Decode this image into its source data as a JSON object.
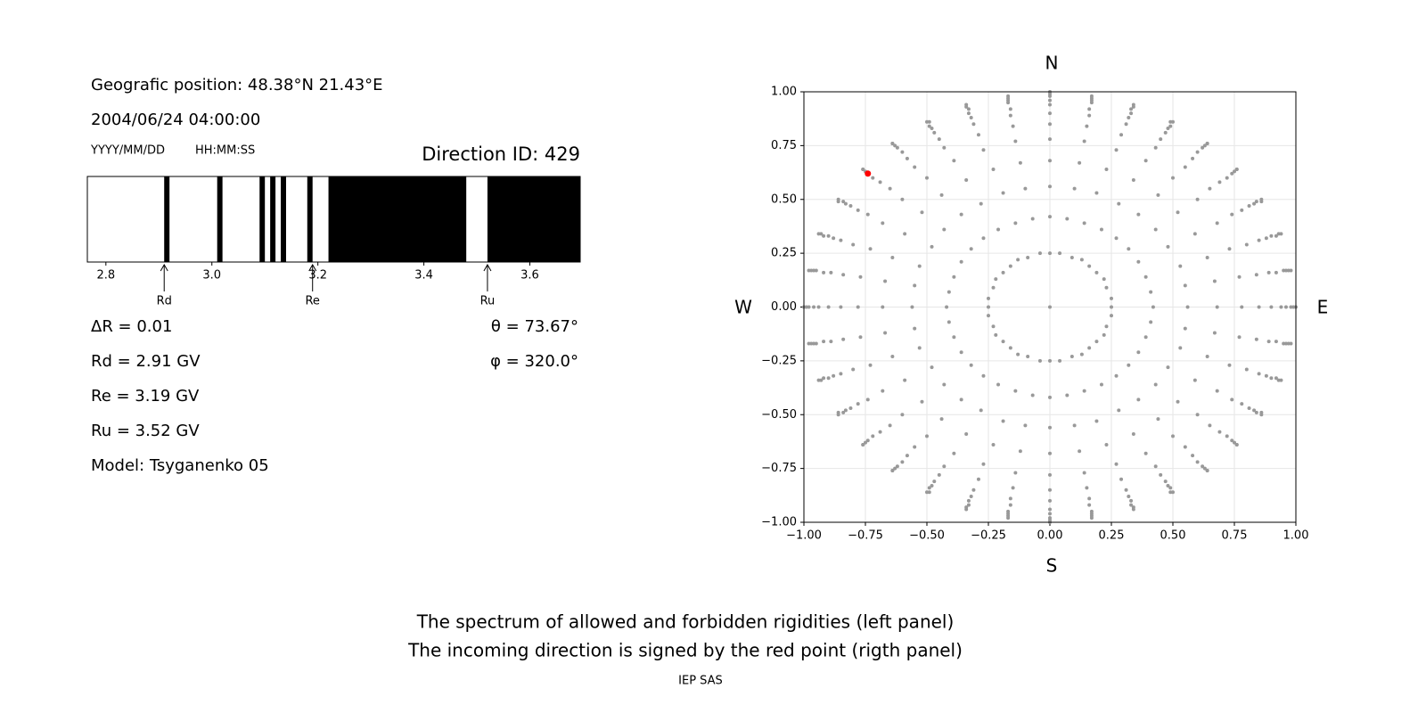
{
  "info": {
    "position": "Geografic position: 48.38°N 21.43°E",
    "datetime": "2004/06/24 04:00:00",
    "date_format": "YYYY/MM/DD",
    "time_format": "HH:MM:SS",
    "direction_id": "Direction ID: 429",
    "delta_r": "ΔR = 0.01",
    "rd": "Rd = 2.91 GV",
    "re": "Re = 3.19 GV",
    "ru": "Ru = 3.52 GV",
    "model": "Model: Tsyganenko 05",
    "theta": "θ = 73.67°",
    "phi": "φ = 320.0°"
  },
  "chart_data": [
    {
      "type": "spectrum",
      "xlim": [
        2.765,
        3.695
      ],
      "xticks": [
        2.8,
        {
          "value": 3,
          "label": "3.0"
        },
        3.2,
        3.4,
        3.6
      ],
      "band_color": "#000000",
      "bands": [
        [
          2.91,
          2.92
        ],
        [
          3.01,
          3.02
        ],
        [
          3.09,
          3.1
        ],
        [
          3.11,
          3.12
        ],
        [
          3.13,
          3.14
        ],
        [
          3.18,
          3.19
        ],
        [
          3.22,
          3.48
        ],
        [
          3.52,
          3.695
        ]
      ],
      "markers": [
        {
          "label": "Rd",
          "value": 2.91
        },
        {
          "label": "Re",
          "value": 3.19
        },
        {
          "label": "Ru",
          "value": 3.52
        }
      ]
    },
    {
      "type": "scatter",
      "xlim": [
        -1,
        1
      ],
      "ylim": [
        -1,
        1
      ],
      "grid": true,
      "xticks": [
        {
          "value": -1,
          "label": "−1.00"
        },
        {
          "value": -0.75,
          "label": "−0.75"
        },
        {
          "value": -0.5,
          "label": "−0.50"
        },
        {
          "value": -0.25,
          "label": "−0.25"
        },
        {
          "value": 0,
          "label": "0.00"
        },
        0.25,
        {
          "value": 0.5,
          "label": "0.50"
        },
        0.75,
        {
          "value": 1,
          "label": "1.00"
        }
      ],
      "yticks": [
        {
          "value": -1,
          "label": "−1.00"
        },
        {
          "value": -0.75,
          "label": "−0.75"
        },
        {
          "value": -0.5,
          "label": "−0.50"
        },
        {
          "value": -0.25,
          "label": "−0.25"
        },
        {
          "value": 0,
          "label": "0.00"
        },
        0.25,
        {
          "value": 0.5,
          "label": "0.50"
        },
        0.75,
        {
          "value": 1,
          "label": "1.00"
        }
      ],
      "compass": {
        "north": "N",
        "south": "S",
        "west": "W",
        "east": "E"
      },
      "series": [
        {
          "color": "#999999",
          "x": [
            0,
            0.25,
            0.25,
            0.23,
            0.22,
            0.19,
            0.16,
            0.13,
            0.09,
            0.04,
            0,
            -0.04,
            -0.09,
            -0.13,
            -0.16,
            -0.19,
            -0.22,
            -0.23,
            -0.25,
            -0.25,
            -0.25,
            -0.23,
            -0.22,
            -0.19,
            -0.16,
            -0.13,
            -0.09,
            -0.04,
            0,
            0.04,
            0.09,
            0.13,
            0.16,
            0.19,
            0.22,
            0.23,
            0.25,
            0.42,
            0.41,
            0.39,
            0.36,
            0.32,
            0.27,
            0.21,
            0.14,
            0.07,
            0,
            -0.07,
            -0.14,
            -0.21,
            -0.27,
            -0.32,
            -0.36,
            -0.39,
            -0.41,
            -0.42,
            -0.41,
            -0.39,
            -0.36,
            -0.32,
            -0.27,
            -0.21,
            -0.14,
            -0.07,
            0,
            0.07,
            0.14,
            0.21,
            0.27,
            0.32,
            0.36,
            0.39,
            0.41,
            0.56,
            0.55,
            0.53,
            0.48,
            0.43,
            0.36,
            0.28,
            0.19,
            0.1,
            0,
            -0.1,
            -0.19,
            -0.28,
            -0.36,
            -0.43,
            -0.48,
            -0.53,
            -0.55,
            -0.56,
            -0.55,
            -0.53,
            -0.48,
            -0.43,
            -0.36,
            -0.28,
            -0.19,
            -0.1,
            0,
            0.1,
            0.19,
            0.28,
            0.36,
            0.43,
            0.48,
            0.53,
            0.55,
            0.68,
            0.67,
            0.64,
            0.59,
            0.52,
            0.44,
            0.34,
            0.23,
            0.12,
            0,
            -0.12,
            -0.23,
            -0.34,
            -0.44,
            -0.52,
            -0.59,
            -0.64,
            -0.67,
            -0.68,
            -0.67,
            -0.64,
            -0.59,
            -0.52,
            -0.44,
            -0.34,
            -0.23,
            -0.12,
            0,
            0.12,
            0.23,
            0.34,
            0.44,
            0.52,
            0.59,
            0.64,
            0.67,
            0.78,
            0.77,
            0.73,
            0.68,
            0.6,
            0.5,
            0.39,
            0.27,
            0.14,
            0,
            -0.14,
            -0.27,
            -0.39,
            -0.5,
            -0.6,
            -0.68,
            -0.73,
            -0.77,
            -0.78,
            -0.77,
            -0.73,
            -0.68,
            -0.6,
            -0.5,
            -0.39,
            -0.27,
            -0.14,
            0,
            0.14,
            0.27,
            0.39,
            0.5,
            0.6,
            0.68,
            0.73,
            0.77,
            0.85,
            0.84,
            0.8,
            0.74,
            0.65,
            0.55,
            0.43,
            0.29,
            0.15,
            0,
            -0.15,
            -0.29,
            -0.43,
            -0.55,
            -0.65,
            -0.74,
            -0.8,
            -0.84,
            -0.85,
            -0.84,
            -0.8,
            -0.74,
            -0.65,
            -0.55,
            -0.43,
            -0.29,
            -0.15,
            0,
            0.15,
            0.29,
            0.43,
            0.55,
            0.65,
            0.74,
            0.8,
            0.84,
            0.9,
            0.89,
            0.85,
            0.78,
            0.69,
            0.58,
            0.45,
            0.31,
            0.16,
            0,
            -0.16,
            -0.31,
            -0.45,
            -0.58,
            -0.69,
            -0.78,
            -0.85,
            -0.89,
            -0.9,
            -0.89,
            -0.85,
            -0.78,
            -0.69,
            -0.58,
            -0.45,
            -0.31,
            -0.16,
            0,
            0.16,
            0.31,
            0.45,
            0.58,
            0.69,
            0.78,
            0.85,
            0.89,
            0.94,
            0.92,
            0.88,
            0.81,
            0.72,
            0.6,
            0.47,
            0.32,
            0.16,
            0,
            -0.16,
            -0.32,
            -0.47,
            -0.6,
            -0.72,
            -0.81,
            -0.88,
            -0.92,
            -0.94,
            -0.92,
            -0.88,
            -0.81,
            -0.72,
            -0.6,
            -0.47,
            -0.32,
            -0.16,
            0,
            0.16,
            0.32,
            0.47,
            0.6,
            0.72,
            0.81,
            0.88,
            0.92,
            0.96,
            0.95,
            0.9,
            0.83,
            0.74,
            0.62,
            0.48,
            0.33,
            0.17,
            0,
            -0.17,
            -0.33,
            -0.48,
            -0.62,
            -0.74,
            -0.83,
            -0.9,
            -0.95,
            -0.96,
            -0.95,
            -0.9,
            -0.83,
            -0.74,
            -0.62,
            -0.48,
            -0.33,
            -0.17,
            0,
            0.17,
            0.33,
            0.48,
            0.62,
            0.74,
            0.83,
            0.9,
            0.95,
            0.98,
            0.96,
            0.92,
            0.84,
            0.75,
            0.63,
            0.49,
            0.33,
            0.17,
            0,
            -0.17,
            -0.33,
            -0.49,
            -0.63,
            -0.75,
            -0.84,
            -0.92,
            -0.96,
            -0.98,
            -0.96,
            -0.92,
            -0.84,
            -0.75,
            -0.63,
            -0.49,
            -0.33,
            -0.17,
            0,
            0.17,
            0.33,
            0.49,
            0.63,
            0.75,
            0.84,
            0.92,
            0.96,
            0.99,
            0.97,
            0.93,
            0.86,
            0.76,
            0.64,
            0.49,
            0.34,
            0.17,
            0,
            -0.17,
            -0.34,
            -0.49,
            -0.64,
            -0.76,
            -0.86,
            -0.93,
            -0.97,
            -0.99,
            -0.97,
            -0.93,
            -0.86,
            -0.76,
            -0.64,
            -0.49,
            -0.34,
            -0.17,
            0,
            0.17,
            0.34,
            0.49,
            0.64,
            0.76,
            0.86,
            0.93,
            0.97,
            1,
            0.98,
            0.94,
            0.86,
            0.76,
            0.64,
            0.5,
            0.34,
            0.17,
            0,
            -0.17,
            -0.34,
            -0.5,
            -0.64,
            -0.76,
            -0.86,
            -0.94,
            -0.98,
            -1,
            -0.98,
            -0.94,
            -0.86,
            -0.76,
            -0.64,
            -0.5,
            -0.34,
            -0.17,
            0,
            0.17,
            0.34,
            0.5,
            0.64,
            0.76,
            0.86,
            0.94,
            0.98
          ],
          "values": [
            0,
            0,
            0.04,
            0.09,
            0.13,
            0.16,
            0.19,
            0.22,
            0.23,
            0.25,
            0.25,
            0.25,
            0.23,
            0.22,
            0.19,
            0.16,
            0.13,
            0.09,
            0.04,
            0,
            -0.04,
            -0.09,
            -0.13,
            -0.16,
            -0.19,
            -0.22,
            -0.23,
            -0.25,
            -0.25,
            -0.25,
            -0.23,
            -0.22,
            -0.19,
            -0.16,
            -0.13,
            -0.09,
            -0.04,
            0,
            0.07,
            0.14,
            0.21,
            0.27,
            0.32,
            0.36,
            0.39,
            0.41,
            0.42,
            0.41,
            0.39,
            0.36,
            0.32,
            0.27,
            0.21,
            0.14,
            0.07,
            0,
            -0.07,
            -0.14,
            -0.21,
            -0.27,
            -0.32,
            -0.36,
            -0.39,
            -0.41,
            -0.42,
            -0.41,
            -0.39,
            -0.36,
            -0.32,
            -0.27,
            -0.21,
            -0.14,
            -0.07,
            0,
            0.1,
            0.19,
            0.28,
            0.36,
            0.43,
            0.48,
            0.53,
            0.55,
            0.56,
            0.55,
            0.53,
            0.48,
            0.43,
            0.36,
            0.28,
            0.19,
            0.1,
            0,
            -0.1,
            -0.19,
            -0.28,
            -0.36,
            -0.43,
            -0.48,
            -0.53,
            -0.55,
            -0.56,
            -0.55,
            -0.53,
            -0.48,
            -0.43,
            -0.36,
            -0.28,
            -0.19,
            -0.1,
            0,
            0.12,
            0.23,
            0.34,
            0.44,
            0.52,
            0.59,
            0.64,
            0.67,
            0.68,
            0.67,
            0.64,
            0.59,
            0.52,
            0.44,
            0.34,
            0.23,
            0.12,
            0,
            -0.12,
            -0.23,
            -0.34,
            -0.44,
            -0.52,
            -0.59,
            -0.64,
            -0.67,
            -0.68,
            -0.67,
            -0.64,
            -0.59,
            -0.52,
            -0.44,
            -0.34,
            -0.23,
            -0.12,
            0,
            0.14,
            0.27,
            0.39,
            0.5,
            0.6,
            0.68,
            0.73,
            0.77,
            0.78,
            0.77,
            0.73,
            0.68,
            0.6,
            0.5,
            0.39,
            0.27,
            0.14,
            0,
            -0.14,
            -0.27,
            -0.39,
            -0.5,
            -0.6,
            -0.68,
            -0.73,
            -0.77,
            -0.78,
            -0.77,
            -0.73,
            -0.68,
            -0.6,
            -0.5,
            -0.39,
            -0.27,
            -0.14,
            0,
            0.15,
            0.29,
            0.43,
            0.55,
            0.65,
            0.74,
            0.8,
            0.84,
            0.85,
            0.84,
            0.8,
            0.74,
            0.65,
            0.55,
            0.43,
            0.29,
            0.15,
            0,
            -0.15,
            -0.29,
            -0.43,
            -0.55,
            -0.65,
            -0.74,
            -0.8,
            -0.84,
            -0.85,
            -0.84,
            -0.8,
            -0.74,
            -0.65,
            -0.55,
            -0.43,
            -0.29,
            -0.15,
            0,
            0.16,
            0.31,
            0.45,
            0.58,
            0.69,
            0.78,
            0.85,
            0.89,
            0.9,
            0.89,
            0.85,
            0.78,
            0.69,
            0.58,
            0.45,
            0.31,
            0.16,
            0,
            -0.16,
            -0.31,
            -0.45,
            -0.58,
            -0.69,
            -0.78,
            -0.85,
            -0.89,
            -0.9,
            -0.89,
            -0.85,
            -0.78,
            -0.69,
            -0.58,
            -0.45,
            -0.31,
            -0.16,
            0,
            0.16,
            0.32,
            0.47,
            0.6,
            0.72,
            0.81,
            0.88,
            0.92,
            0.94,
            0.92,
            0.88,
            0.81,
            0.72,
            0.6,
            0.47,
            0.32,
            0.16,
            0,
            -0.16,
            -0.32,
            -0.47,
            -0.6,
            -0.72,
            -0.81,
            -0.88,
            -0.92,
            -0.94,
            -0.92,
            -0.88,
            -0.81,
            -0.72,
            -0.6,
            -0.47,
            -0.32,
            -0.16,
            0,
            0.17,
            0.33,
            0.48,
            0.62,
            0.74,
            0.83,
            0.9,
            0.95,
            0.96,
            0.95,
            0.9,
            0.83,
            0.74,
            0.62,
            0.48,
            0.33,
            0.17,
            0,
            -0.17,
            -0.33,
            -0.48,
            -0.62,
            -0.74,
            -0.83,
            -0.9,
            -0.95,
            -0.96,
            -0.95,
            -0.9,
            -0.83,
            -0.74,
            -0.62,
            -0.48,
            -0.33,
            -0.17,
            0,
            0.17,
            0.33,
            0.49,
            0.63,
            0.75,
            0.84,
            0.92,
            0.96,
            0.98,
            0.96,
            0.92,
            0.84,
            0.75,
            0.63,
            0.49,
            0.33,
            0.17,
            0,
            -0.17,
            -0.33,
            -0.49,
            -0.63,
            -0.75,
            -0.84,
            -0.92,
            -0.96,
            -0.98,
            -0.96,
            -0.92,
            -0.84,
            -0.75,
            -0.63,
            -0.49,
            -0.33,
            -0.17,
            0,
            0.17,
            0.34,
            0.49,
            0.64,
            0.76,
            0.86,
            0.93,
            0.97,
            0.99,
            0.97,
            0.93,
            0.86,
            0.76,
            0.64,
            0.49,
            0.34,
            0.17,
            0,
            -0.17,
            -0.34,
            -0.49,
            -0.64,
            -0.76,
            -0.86,
            -0.93,
            -0.97,
            -0.99,
            -0.97,
            -0.93,
            -0.86,
            -0.76,
            -0.64,
            -0.49,
            -0.34,
            -0.17,
            0,
            0.17,
            0.34,
            0.5,
            0.64,
            0.76,
            0.86,
            0.94,
            0.98,
            1,
            0.98,
            0.94,
            0.86,
            0.76,
            0.64,
            0.5,
            0.34,
            0.17,
            0,
            -0.17,
            -0.34,
            -0.5,
            -0.64,
            -0.76,
            -0.86,
            -0.94,
            -0.98,
            -1,
            -0.98,
            -0.94,
            -0.86,
            -0.76,
            -0.64,
            -0.5,
            -0.34,
            -0.17
          ]
        },
        {
          "color": "#ff0000",
          "x": [
            -0.74
          ],
          "values": [
            0.62
          ]
        }
      ]
    }
  ],
  "caption": [
    "The spectrum of allowed and forbidden rigidities (left panel)",
    "The incoming direction is signed by the red point (rigth panel)"
  ],
  "credit": "IEP SAS"
}
